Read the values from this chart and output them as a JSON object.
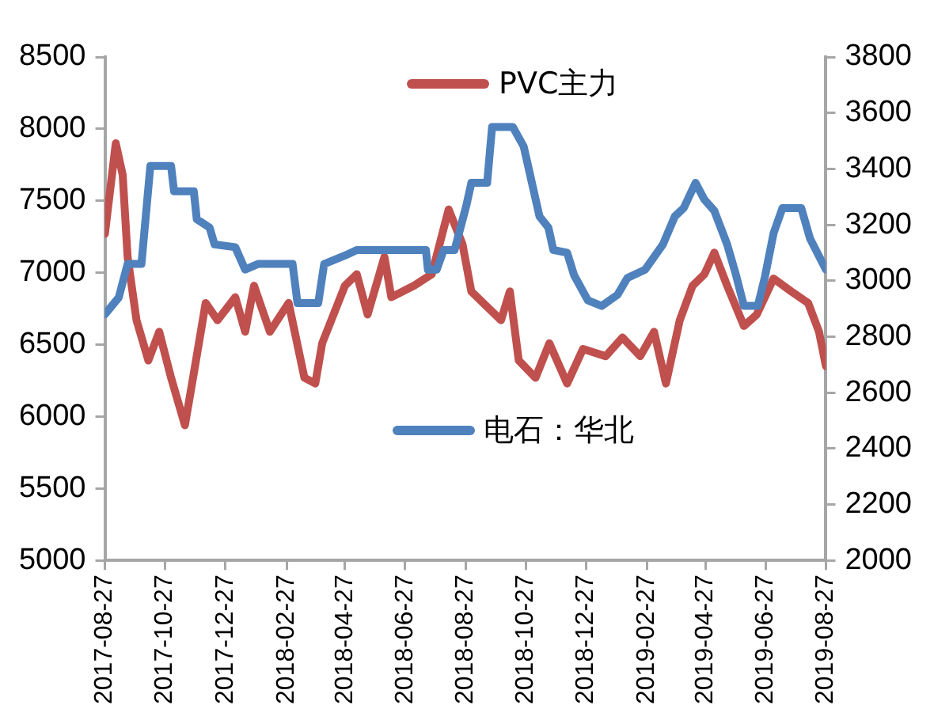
{
  "chart_data": {
    "type": "line",
    "legend": "center",
    "marker": "none",
    "line_style": "solid",
    "xlim": [
      "2017-08-27",
      "2019-08-27"
    ],
    "xticks": [
      "2017-08-27",
      "2017-10-27",
      "2017-12-27",
      "2018-02-27",
      "2018-04-27",
      "2018-06-27",
      "2018-08-27",
      "2018-10-27",
      "2018-12-27",
      "2019-02-27",
      "2019-04-27",
      "2019-06-27",
      "2019-08-27"
    ],
    "ylim": [
      5000,
      8500
    ],
    "yticks": [
      5000,
      5500,
      6000,
      6500,
      7000,
      7500,
      8000,
      8500
    ],
    "y2lim": [
      2000,
      3800
    ],
    "y2ticks": [
      2000,
      2200,
      2400,
      2600,
      2800,
      3000,
      3200,
      3400,
      3600,
      3800
    ],
    "series": [
      {
        "name": "PVC主力",
        "color": "#c0504d",
        "x": [
          "2017-08-27",
          "2017-09-07",
          "2017-09-14",
          "2017-09-19",
          "2017-09-28",
          "2017-10-10",
          "2017-10-21",
          "2017-11-02",
          "2017-11-16",
          "2017-11-25",
          "2017-12-07",
          "2017-12-19",
          "2018-01-06",
          "2018-01-16",
          "2018-01-25",
          "2018-02-10",
          "2018-03-01",
          "2018-03-17",
          "2018-03-28",
          "2018-04-04",
          "2018-04-27",
          "2018-05-09",
          "2018-05-20",
          "2018-06-06",
          "2018-06-13",
          "2018-07-06",
          "2018-07-24",
          "2018-08-10",
          "2018-08-24",
          "2018-09-02",
          "2018-09-20",
          "2018-10-02",
          "2018-10-11",
          "2018-10-20",
          "2018-11-06",
          "2018-11-20",
          "2018-12-08",
          "2018-12-24",
          "2019-01-16",
          "2019-02-02",
          "2019-02-20",
          "2019-03-06",
          "2019-03-18",
          "2019-04-01",
          "2019-04-14",
          "2019-04-26",
          "2019-05-06",
          "2019-05-19",
          "2019-06-05",
          "2019-06-18",
          "2019-07-05",
          "2019-07-23",
          "2019-08-09",
          "2019-08-20",
          "2019-08-27"
        ],
        "values": [
          7270,
          7900,
          7680,
          7110,
          6670,
          6390,
          6590,
          6270,
          5940,
          6300,
          6790,
          6670,
          6830,
          6590,
          6910,
          6590,
          6790,
          6270,
          6230,
          6510,
          6910,
          6990,
          6710,
          7110,
          6830,
          6910,
          6990,
          7440,
          7200,
          6870,
          6750,
          6670,
          6870,
          6390,
          6270,
          6510,
          6230,
          6470,
          6420,
          6550,
          6420,
          6590,
          6230,
          6670,
          6910,
          6990,
          7140,
          6910,
          6630,
          6710,
          6960,
          6870,
          6790,
          6590,
          6350
        ]
      },
      {
        "name": "电石：华北",
        "color": "#4f81bd",
        "axis": "y2",
        "x": [
          "2017-08-27",
          "2017-09-10",
          "2017-09-19",
          "2017-10-03",
          "2017-10-12",
          "2017-11-02",
          "2017-11-05",
          "2017-11-25",
          "2017-11-28",
          "2017-12-11",
          "2017-12-16",
          "2018-01-06",
          "2018-01-16",
          "2018-01-29",
          "2018-03-05",
          "2018-03-10",
          "2018-03-31",
          "2018-04-06",
          "2018-04-27",
          "2018-05-09",
          "2018-07-18",
          "2018-07-20",
          "2018-07-29",
          "2018-08-05",
          "2018-08-16",
          "2018-08-28",
          "2018-09-02",
          "2018-09-18",
          "2018-09-23",
          "2018-10-14",
          "2018-10-25",
          "2018-11-10",
          "2018-11-19",
          "2018-11-24",
          "2018-12-08",
          "2018-12-15",
          "2018-12-29",
          "2019-01-12",
          "2019-01-28",
          "2019-02-07",
          "2019-02-25",
          "2019-03-15",
          "2019-03-27",
          "2019-04-05",
          "2019-04-17",
          "2019-04-26",
          "2019-05-06",
          "2019-05-19",
          "2019-05-28",
          "2019-06-05",
          "2019-06-19",
          "2019-06-26",
          "2019-07-05",
          "2019-07-14",
          "2019-08-02",
          "2019-08-11",
          "2019-08-27"
        ],
        "values": [
          2880,
          2940,
          3060,
          3060,
          3410,
          3410,
          3320,
          3320,
          3220,
          3190,
          3130,
          3120,
          3040,
          3060,
          3060,
          2920,
          2920,
          3060,
          3090,
          3110,
          3110,
          3040,
          3040,
          3110,
          3110,
          3270,
          3350,
          3350,
          3550,
          3550,
          3480,
          3230,
          3190,
          3110,
          3100,
          3020,
          2930,
          2910,
          2950,
          3010,
          3040,
          3130,
          3230,
          3260,
          3350,
          3290,
          3250,
          3130,
          3020,
          2910,
          2910,
          3010,
          3170,
          3260,
          3260,
          3150,
          3040
        ]
      }
    ]
  }
}
